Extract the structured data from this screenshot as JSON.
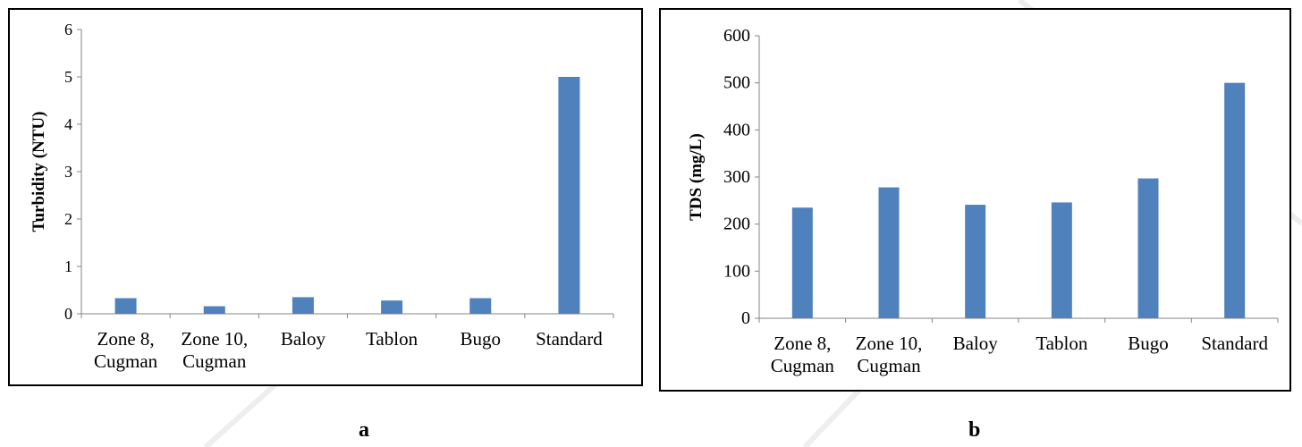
{
  "colors": {
    "bar": "#4f81bd",
    "axis": "#868686",
    "watermark": "#eeeeee"
  },
  "panel_labels": [
    "a",
    "b"
  ],
  "chart_data": [
    {
      "type": "bar",
      "title": "",
      "xlabel": "",
      "ylabel": "Turbidity (NTU)",
      "categories": [
        [
          "Zone 8,",
          "Cugman"
        ],
        [
          "Zone 10,",
          "Cugman"
        ],
        [
          "Baloy"
        ],
        [
          "Tablon"
        ],
        [
          "Bugo"
        ],
        [
          "Standard"
        ]
      ],
      "values": [
        0.33,
        0.16,
        0.35,
        0.28,
        0.33,
        5
      ],
      "ylim": [
        0,
        6
      ],
      "yticks": [
        0,
        1,
        2,
        3,
        4,
        5,
        6
      ],
      "grid": false,
      "legend": "none"
    },
    {
      "type": "bar",
      "title": "",
      "xlabel": "",
      "ylabel": "TDS (mg/L)",
      "categories": [
        [
          "Zone 8,",
          "Cugman"
        ],
        [
          "Zone 10,",
          "Cugman"
        ],
        [
          "Baloy"
        ],
        [
          "Tablon"
        ],
        [
          "Bugo"
        ],
        [
          "Standard"
        ]
      ],
      "values": [
        235,
        278,
        241,
        246,
        297,
        500
      ],
      "ylim": [
        0,
        600
      ],
      "yticks": [
        0,
        100,
        200,
        300,
        400,
        500,
        600
      ],
      "grid": false,
      "legend": "none"
    }
  ]
}
